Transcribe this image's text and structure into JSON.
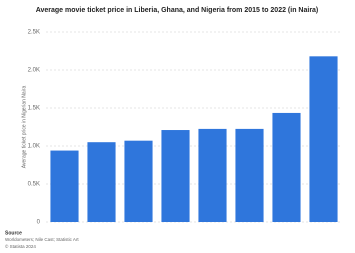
{
  "chart_data": {
    "type": "bar",
    "title": "Average movie ticket price in Liberia, Ghana, and Nigeria from 2015 to 2022 (in Naira)",
    "y_label": "Average ticket price in Nigerian Naira",
    "categories": [
      null,
      null,
      null,
      null,
      null,
      null,
      null,
      null
    ],
    "values": [
      940,
      1050,
      1070,
      1210,
      1225,
      1225,
      1435,
      2180
    ],
    "color": "#2f76dc",
    "ylim": [
      0,
      2500
    ],
    "yticks": [
      0,
      {
        "value": 500,
        "label": "0.5K"
      },
      {
        "value": 1000,
        "label": "1.0K"
      },
      {
        "value": 1500,
        "label": "1.5K"
      },
      {
        "value": 2000,
        "label": "2.0K"
      },
      {
        "value": 2500,
        "label": "2.5K"
      }
    ],
    "grid": true,
    "source_title": "Source",
    "source": "Worldometers; Nile Cast; Statistic Art",
    "copyright": "© Statista 2024"
  }
}
